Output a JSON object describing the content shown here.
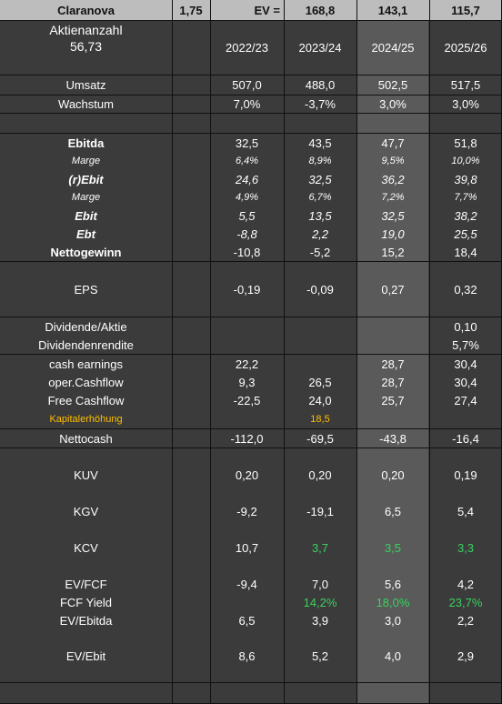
{
  "header": {
    "company": "Claranova",
    "price": "1,75",
    "ev_label": "EV =",
    "ev_values": [
      "168,8",
      "143,1",
      "115,7"
    ]
  },
  "shares": {
    "label": "Aktienanzahl",
    "value": "56,73"
  },
  "years": [
    "2022/23",
    "2023/24",
    "2024/25",
    "2025/26"
  ],
  "rows": [
    {
      "label": "Umsatz",
      "values": [
        "507,0",
        "488,0",
        "502,5",
        "517,5"
      ]
    },
    {
      "label": "Wachstum",
      "values": [
        "7,0%",
        "-3,7%",
        "3,0%",
        "3,0%"
      ]
    },
    {
      "label": "Ebitda",
      "values": [
        "32,5",
        "43,5",
        "47,7",
        "51,8"
      ]
    },
    {
      "label": "Marge",
      "values": [
        "6,4%",
        "8,9%",
        "9,5%",
        "10,0%"
      ]
    },
    {
      "label": "(r)Ebit",
      "values": [
        "24,6",
        "32,5",
        "36,2",
        "39,8"
      ]
    },
    {
      "label": "Marge",
      "values": [
        "4,9%",
        "6,7%",
        "7,2%",
        "7,7%"
      ]
    },
    {
      "label": "Ebit",
      "values": [
        "5,5",
        "13,5",
        "32,5",
        "38,2"
      ]
    },
    {
      "label": "Ebt",
      "values": [
        "-8,8",
        "2,2",
        "19,0",
        "25,5"
      ]
    },
    {
      "label": "Nettogewinn",
      "values": [
        "-10,8",
        "-5,2",
        "15,2",
        "18,4"
      ]
    },
    {
      "label": "EPS",
      "values": [
        "-0,19",
        "-0,09",
        "0,27",
        "0,32"
      ]
    },
    {
      "label": "Dividende/Aktie",
      "values": [
        "",
        "",
        "",
        "0,10"
      ]
    },
    {
      "label": "Dividendenrendite",
      "values": [
        "",
        "",
        "",
        "5,7%"
      ]
    },
    {
      "label": "cash earnings",
      "values": [
        "22,2",
        "",
        "28,7",
        "30,4"
      ]
    },
    {
      "label": "oper.Cashflow",
      "values": [
        "9,3",
        "26,5",
        "28,7",
        "30,4"
      ]
    },
    {
      "label": "Free Cashflow",
      "values": [
        "-22,5",
        "24,0",
        "25,7",
        "27,4"
      ]
    },
    {
      "label": "Kapitalerhöhung",
      "values": [
        "",
        "18,5",
        "",
        ""
      ]
    },
    {
      "label": "Nettocash",
      "values": [
        "-112,0",
        "-69,5",
        "-43,8",
        "-16,4"
      ]
    },
    {
      "label": "KUV",
      "values": [
        "0,20",
        "0,20",
        "0,20",
        "0,19"
      ]
    },
    {
      "label": "KGV",
      "values": [
        "-9,2",
        "-19,1",
        "6,5",
        "5,4"
      ]
    },
    {
      "label": "KCV",
      "values": [
        "10,7",
        "3,7",
        "3,5",
        "3,3"
      ]
    },
    {
      "label": "EV/FCF",
      "values": [
        "-9,4",
        "7,0",
        "5,6",
        "4,2"
      ]
    },
    {
      "label": "FCF Yield",
      "values": [
        "",
        "14,2%",
        "18,0%",
        "23,7%"
      ]
    },
    {
      "label": "EV/Ebitda",
      "values": [
        "6,5",
        "3,9",
        "3,0",
        "2,2"
      ]
    },
    {
      "label": "EV/Ebit",
      "values": [
        "8,6",
        "5,2",
        "4,0",
        "2,9"
      ]
    }
  ],
  "colors": {
    "background": "#3b3b3b",
    "header": "#bdbdbd",
    "highlight_column": "#5a5a5a",
    "positive": "#3bd15f",
    "capital_increase": "#ffbf00"
  }
}
